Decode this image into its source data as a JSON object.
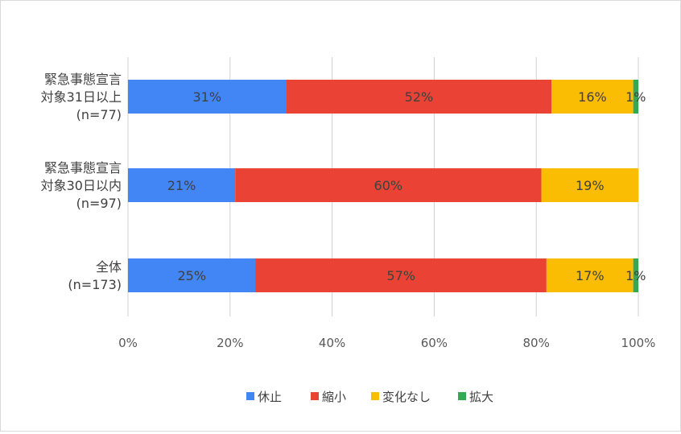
{
  "chart_data": {
    "type": "bar",
    "orientation": "horizontal",
    "stacked": "percent",
    "categories": [
      [
        "緊急事態宣言",
        "対象31日以上",
        "(n=77)"
      ],
      [
        "緊急事態宣言",
        "対象30日以内",
        "(n=97)"
      ],
      [
        "全体",
        "(n=173)"
      ]
    ],
    "series": [
      {
        "name": "休止",
        "color": "#4285f4",
        "values": [
          31,
          21,
          25
        ],
        "labels": [
          "31%",
          "21%",
          "25%"
        ]
      },
      {
        "name": "縮小",
        "color": "#ea4335",
        "values": [
          52,
          60,
          57
        ],
        "labels": [
          "52%",
          "60%",
          "57%"
        ]
      },
      {
        "name": "変化なし",
        "color": "#fbbc04",
        "values": [
          16,
          19,
          17
        ],
        "labels": [
          "16%",
          "19%",
          "17%"
        ]
      },
      {
        "name": "拡大",
        "color": "#34a853",
        "values": [
          1,
          0,
          1
        ],
        "labels": [
          "1%",
          "",
          "1%"
        ]
      }
    ],
    "xlim": [
      0,
      100
    ],
    "xticks": [
      0,
      20,
      40,
      60,
      80,
      100
    ],
    "xtick_labels": [
      "0%",
      "20%",
      "40%",
      "60%",
      "80%",
      "100%"
    ],
    "grid": true,
    "legend_position": "bottom"
  }
}
